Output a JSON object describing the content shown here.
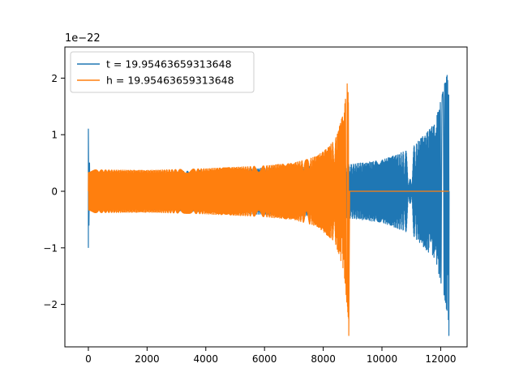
{
  "chart_data": {
    "type": "line",
    "title": "",
    "xlabel": "",
    "ylabel": "",
    "y_offset_label": "1e−22",
    "xlim": [
      -800,
      12900
    ],
    "ylim": [
      -2.75,
      2.55
    ],
    "x_ticks": [
      0,
      2000,
      4000,
      6000,
      8000,
      10000,
      12000
    ],
    "x_tick_labels": [
      "0",
      "2000",
      "4000",
      "6000",
      "8000",
      "10000",
      "12000"
    ],
    "y_ticks": [
      -2,
      -1,
      0,
      1,
      2
    ],
    "y_tick_labels": [
      "−2",
      "−1",
      "0",
      "1",
      "2"
    ],
    "grid": false,
    "legend_position": "top-left",
    "series": [
      {
        "name": "t = 19.95463659313648",
        "color": "#1f77b4",
        "chirp_end_index": 12280,
        "initial_spike_amplitude": 1.1,
        "early_amplitude": 0.3,
        "late_amplitude": 0.48,
        "peak_amplitude": 2.35,
        "trough_amplitude": -2.55,
        "points": [
          [
            0,
            -1.0
          ],
          [
            0,
            1.1
          ],
          [
            50,
            0.0
          ],
          [
            2000,
            0.32
          ],
          [
            4000,
            0.37
          ],
          [
            6000,
            0.41
          ],
          [
            8000,
            0.45
          ],
          [
            9000,
            0.48
          ],
          [
            10000,
            0.55
          ],
          [
            11000,
            0.75
          ],
          [
            11800,
            1.2
          ],
          [
            12100,
            1.8
          ],
          [
            12280,
            2.35
          ],
          [
            12280,
            -2.55
          ]
        ]
      },
      {
        "name": "h = 19.95463659313648",
        "color": "#ff7f0e",
        "chirp_end_index": 8870,
        "early_amplitude": 0.38,
        "peak_amplitude": 2.35,
        "trough_amplitude": -2.55,
        "flat_value_after_merger": 0.0,
        "flat_until": 12280,
        "points": [
          [
            0,
            -0.38
          ],
          [
            0,
            0.38
          ],
          [
            2000,
            0.37
          ],
          [
            4000,
            0.4
          ],
          [
            6000,
            0.45
          ],
          [
            7000,
            0.5
          ],
          [
            7800,
            0.62
          ],
          [
            8400,
            0.9
          ],
          [
            8700,
            1.4
          ],
          [
            8870,
            2.35
          ],
          [
            8870,
            -2.55
          ],
          [
            8900,
            0.0
          ],
          [
            12280,
            0.0
          ]
        ]
      }
    ]
  }
}
